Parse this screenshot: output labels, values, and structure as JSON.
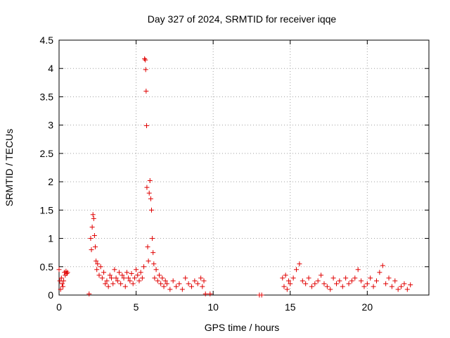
{
  "chart_data": {
    "type": "scatter",
    "title": "Day 327 of 2024, SRMTID for receiver iqqe",
    "xlabel": "GPS time / hours",
    "ylabel": "SRMTID / TECUs",
    "xlim": [
      0,
      24
    ],
    "ylim": [
      0,
      4.5
    ],
    "xticks": [
      0,
      5,
      10,
      15,
      20
    ],
    "xtick_labels": [
      "0",
      "5",
      "10",
      "15",
      "20"
    ],
    "yticks": [
      0,
      0.5,
      1,
      1.5,
      2,
      2.5,
      3,
      3.5,
      4,
      4.5
    ],
    "ytick_labels": [
      "0",
      "0.5",
      "1",
      "1.5",
      "2",
      "2.5",
      "3",
      "3.5",
      "4",
      "4.5"
    ],
    "grid": true,
    "marker": "+",
    "color": "#e00000",
    "series": [
      {
        "x": [
          0.0,
          0.05,
          0.1,
          0.15,
          0.2,
          0.25,
          0.3,
          0.35,
          0.4,
          0.45,
          0.5,
          0.55,
          1.95,
          2.05,
          2.1,
          2.15,
          2.2,
          2.25,
          2.3,
          2.35,
          2.4,
          2.45,
          2.5,
          2.6,
          2.7,
          2.8,
          2.9,
          3.0,
          3.1,
          3.2,
          3.3,
          3.4,
          3.5,
          3.6,
          3.7,
          3.8,
          3.9,
          4.0,
          4.1,
          4.2,
          4.3,
          4.4,
          4.5,
          4.6,
          4.7,
          4.8,
          4.9,
          5.0,
          5.1,
          5.2,
          5.3,
          5.4,
          5.5,
          5.55,
          5.6,
          5.62,
          5.65,
          5.68,
          5.7,
          5.75,
          5.8,
          5.85,
          5.9,
          5.95,
          6.0,
          6.05,
          6.1,
          6.15,
          6.2,
          6.3,
          6.4,
          6.5,
          6.6,
          6.7,
          6.8,
          6.9,
          7.0,
          7.2,
          7.4,
          7.6,
          7.8,
          8.0,
          8.2,
          8.4,
          8.6,
          8.8,
          9.0,
          9.2,
          9.3,
          9.4,
          9.5,
          9.8,
          13.0,
          13.15,
          14.5,
          14.6,
          14.7,
          14.8,
          14.9,
          15.0,
          15.2,
          15.4,
          15.6,
          15.8,
          16.0,
          16.2,
          16.4,
          16.6,
          16.8,
          17.0,
          17.2,
          17.4,
          17.6,
          17.8,
          18.0,
          18.2,
          18.4,
          18.6,
          18.8,
          19.0,
          19.2,
          19.4,
          19.6,
          19.8,
          20.0,
          20.2,
          20.4,
          20.6,
          20.8,
          21.0,
          21.2,
          21.4,
          21.6,
          21.8,
          22.0,
          22.2,
          22.4,
          22.6,
          22.8
        ],
        "y": [
          0.45,
          0.25,
          0.1,
          0.3,
          0.2,
          0.15,
          0.25,
          0.4,
          0.35,
          0.42,
          0.38,
          0.4,
          0.02,
          1.0,
          0.8,
          1.2,
          1.42,
          1.35,
          1.05,
          0.85,
          0.6,
          0.45,
          0.55,
          0.35,
          0.5,
          0.3,
          0.4,
          0.2,
          0.25,
          0.15,
          0.35,
          0.3,
          0.2,
          0.45,
          0.3,
          0.25,
          0.4,
          0.2,
          0.35,
          0.3,
          0.15,
          0.4,
          0.3,
          0.25,
          0.38,
          0.2,
          0.3,
          0.45,
          0.35,
          0.25,
          0.4,
          0.3,
          0.5,
          4.17,
          4.15,
          3.98,
          3.6,
          2.99,
          1.9,
          0.85,
          0.6,
          1.8,
          2.02,
          1.7,
          1.5,
          1.0,
          0.75,
          0.55,
          0.3,
          0.45,
          0.25,
          0.35,
          0.2,
          0.3,
          0.15,
          0.25,
          0.2,
          0.1,
          0.25,
          0.15,
          0.2,
          0.1,
          0.3,
          0.2,
          0.15,
          0.25,
          0.2,
          0.3,
          0.15,
          0.25,
          0.02,
          0.02,
          0.0,
          0.0,
          0.3,
          0.15,
          0.35,
          0.1,
          0.25,
          0.2,
          0.3,
          0.45,
          0.55,
          0.25,
          0.2,
          0.3,
          0.15,
          0.2,
          0.25,
          0.35,
          0.2,
          0.15,
          0.1,
          0.3,
          0.2,
          0.25,
          0.15,
          0.3,
          0.2,
          0.25,
          0.3,
          0.45,
          0.25,
          0.15,
          0.2,
          0.3,
          0.15,
          0.25,
          0.4,
          0.52,
          0.2,
          0.3,
          0.15,
          0.25,
          0.1,
          0.15,
          0.2,
          0.1,
          0.18
        ]
      }
    ]
  }
}
